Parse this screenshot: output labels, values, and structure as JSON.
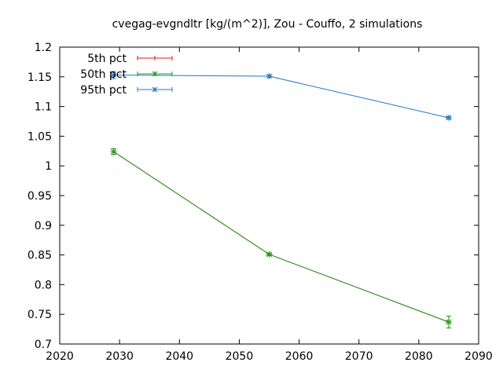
{
  "chart_data": {
    "type": "line",
    "title": "cvegag-evgndltr [kg/(m^2)], Zou - Couffo, 2 simulations",
    "xlabel": "",
    "ylabel": "",
    "xlim": [
      2020,
      2090
    ],
    "ylim": [
      0.7,
      1.2
    ],
    "xticks": [
      "2020",
      "2030",
      "2040",
      "2050",
      "2060",
      "2070",
      "2080",
      "2090"
    ],
    "yticks": [
      "0.7",
      "0.75",
      "0.8",
      "0.85",
      "0.9",
      "0.95",
      "1",
      "1.05",
      "1.1",
      "1.15",
      "1.2"
    ],
    "grid": false,
    "legend_position": "top-left",
    "series": [
      {
        "name": "5th pct",
        "color": "#e41a1c",
        "x": [
          2029,
          2055,
          2085
        ],
        "y": [
          1.024,
          0.851,
          0.737
        ],
        "err": [
          0.005,
          0.002,
          0.01
        ]
      },
      {
        "name": "50th pct",
        "color": "#1aa01a",
        "x": [
          2029,
          2055,
          2085
        ],
        "y": [
          1.024,
          0.851,
          0.737
        ],
        "err": [
          0.005,
          0.002,
          0.01
        ]
      },
      {
        "name": "95th pct",
        "color": "#1f78c8",
        "x": [
          2029,
          2055,
          2085
        ],
        "y": [
          1.153,
          1.151,
          1.081
        ],
        "err": [
          0.006,
          0.002,
          0.002
        ]
      }
    ]
  }
}
